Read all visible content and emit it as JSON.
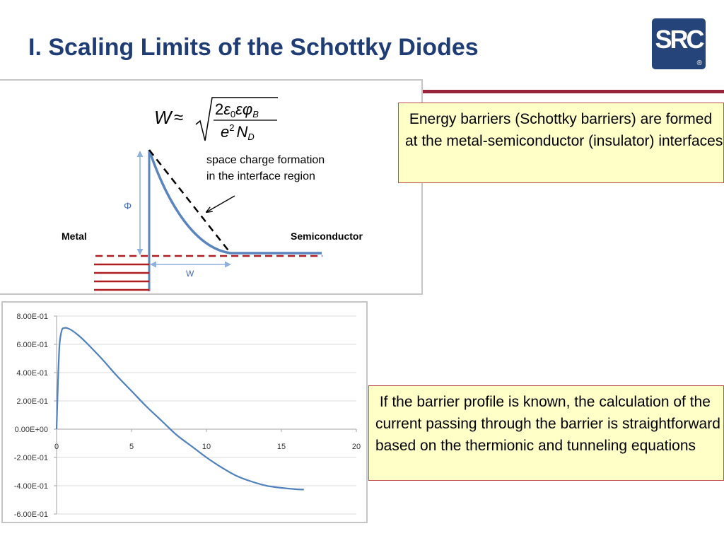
{
  "slide": {
    "title": "I. Scaling Limits of the Schottky Diodes"
  },
  "logo": {
    "text": "SRC",
    "registered": "®",
    "color": "#24447a"
  },
  "colors": {
    "title": "#1f3c74",
    "accent_line": "#98243b",
    "curve": "#5a84be",
    "metal_lines": "#b01c20",
    "note_fill": "#ffffc8",
    "note_border": "#c0504d"
  },
  "diagram": {
    "formula": {
      "lhs": "W",
      "approx": "≈",
      "numerator_coef": "2",
      "eps0": "ε",
      "eps0_sub": "0",
      "eps": "ε",
      "phi": "φ",
      "phi_sub": "B",
      "denom_e": "e",
      "denom_exp": "2",
      "denom_N": "N",
      "denom_sub": "D"
    },
    "annotation_line1": "space charge formation",
    "annotation_line2": "in the interface region",
    "phi_label": "Φ",
    "metal_label": "Metal",
    "semiconductor_label": "Semiconductor",
    "w_label": "W"
  },
  "notes": {
    "barriers": " Energy barriers (Schottky barriers) are formed at the metal-semiconductor (insulator) interfaces",
    "current": " If the barrier profile is known, the calculation of the current passing through the barrier is straightforward based on the thermionic and tunneling equations"
  },
  "chart_data": {
    "type": "line",
    "title": "",
    "xlabel": "",
    "ylabel": "",
    "xlim": [
      0,
      20
    ],
    "ylim": [
      -0.6,
      0.8
    ],
    "x_ticks": [
      0,
      5,
      10,
      15,
      20
    ],
    "x_tick_labels": [
      "0",
      "5",
      "10",
      "15",
      "20"
    ],
    "y_ticks": [
      0.8,
      0.6,
      0.4,
      0.2,
      0.0,
      -0.2,
      -0.4,
      -0.6
    ],
    "y_tick_labels": [
      "8.00E-01",
      "6.00E-01",
      "4.00E-01",
      "2.00E-01",
      "0.00E+00",
      "-2.00E-01",
      "-4.00E-01",
      "-6.00E-01"
    ],
    "grid": "horizontal",
    "legend": "none",
    "series": [
      {
        "x": [
          0,
          0.1,
          0.2,
          0.35,
          0.5,
          0.7,
          1.0,
          1.5,
          2,
          3,
          4,
          5,
          6,
          7,
          8,
          9,
          10,
          11,
          12,
          13,
          14,
          15,
          16,
          16.5
        ],
        "y": [
          0.0,
          0.35,
          0.6,
          0.7,
          0.715,
          0.715,
          0.7,
          0.66,
          0.61,
          0.5,
          0.38,
          0.27,
          0.16,
          0.06,
          -0.04,
          -0.12,
          -0.2,
          -0.27,
          -0.33,
          -0.37,
          -0.4,
          -0.415,
          -0.425,
          -0.427
        ],
        "color": "#4f81bd"
      }
    ]
  }
}
